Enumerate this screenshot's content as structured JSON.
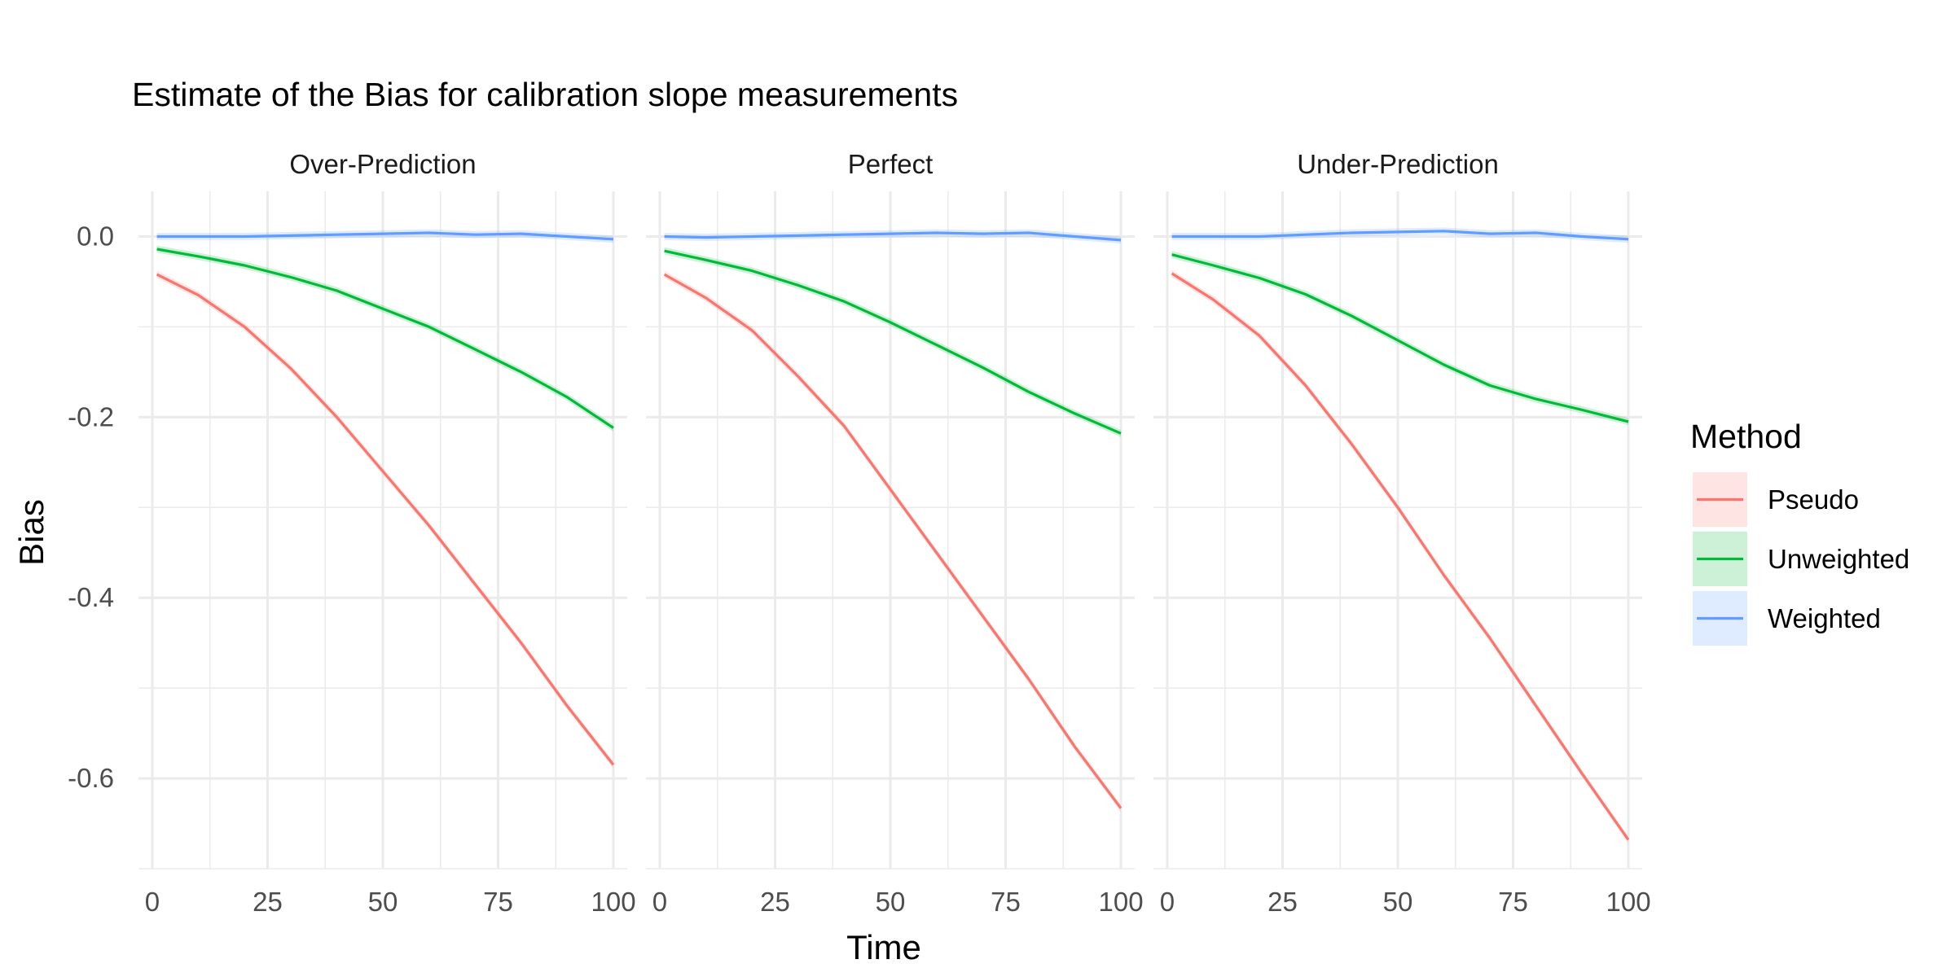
{
  "chart_data": {
    "type": "line",
    "title": "Estimate of the Bias for calibration slope measurements",
    "xlabel": "Time",
    "ylabel": "Bias",
    "xlim": [
      -3,
      103
    ],
    "ylim": [
      -0.7,
      0.05
    ],
    "x_ticks": [
      0,
      25,
      50,
      75,
      100
    ],
    "x_tick_labels": [
      "0",
      "25",
      "50",
      "75",
      "100"
    ],
    "y_ticks": [
      0.0,
      -0.2,
      -0.4,
      -0.6
    ],
    "y_tick_labels": [
      "0.0",
      "-0.2",
      "-0.4",
      "-0.6"
    ],
    "grid": true,
    "legend": {
      "title": "Method",
      "placement": "right",
      "entries": [
        "Pseudo",
        "Unweighted",
        "Weighted"
      ]
    },
    "colors": {
      "Pseudo": "#F8766D",
      "Unweighted": "#00BA38",
      "Weighted": "#619CFF"
    },
    "x": [
      1,
      10,
      20,
      30,
      40,
      50,
      60,
      70,
      80,
      90,
      100
    ],
    "panels": [
      {
        "label": "Over-Prediction",
        "series": [
          {
            "name": "Pseudo",
            "values": [
              -0.042,
              -0.065,
              -0.1,
              -0.146,
              -0.2,
              -0.26,
              -0.32,
              -0.385,
              -0.45,
              -0.52,
              -0.585
            ]
          },
          {
            "name": "Unweighted",
            "values": [
              -0.014,
              -0.022,
              -0.032,
              -0.045,
              -0.06,
              -0.08,
              -0.1,
              -0.125,
              -0.15,
              -0.178,
              -0.212
            ]
          },
          {
            "name": "Weighted",
            "values": [
              0.0,
              0.0,
              0.0,
              0.001,
              0.002,
              0.003,
              0.004,
              0.002,
              0.003,
              0.0,
              -0.003
            ]
          }
        ]
      },
      {
        "label": "Perfect",
        "series": [
          {
            "name": "Pseudo",
            "values": [
              -0.042,
              -0.068,
              -0.104,
              -0.155,
              -0.21,
              -0.28,
              -0.35,
              -0.42,
              -0.49,
              -0.565,
              -0.633
            ]
          },
          {
            "name": "Unweighted",
            "values": [
              -0.016,
              -0.026,
              -0.038,
              -0.054,
              -0.072,
              -0.095,
              -0.12,
              -0.145,
              -0.172,
              -0.196,
              -0.218
            ]
          },
          {
            "name": "Weighted",
            "values": [
              0.0,
              -0.001,
              0.0,
              0.001,
              0.002,
              0.003,
              0.004,
              0.003,
              0.004,
              0.0,
              -0.004
            ]
          }
        ]
      },
      {
        "label": "Under-Prediction",
        "series": [
          {
            "name": "Pseudo",
            "values": [
              -0.041,
              -0.07,
              -0.11,
              -0.165,
              -0.23,
              -0.3,
              -0.375,
              -0.445,
              -0.52,
              -0.595,
              -0.668
            ]
          },
          {
            "name": "Unweighted",
            "values": [
              -0.02,
              -0.032,
              -0.046,
              -0.064,
              -0.088,
              -0.115,
              -0.142,
              -0.165,
              -0.18,
              -0.192,
              -0.205
            ]
          },
          {
            "name": "Weighted",
            "values": [
              0.0,
              0.0,
              0.0,
              0.002,
              0.004,
              0.005,
              0.006,
              0.003,
              0.004,
              0.0,
              -0.003
            ]
          }
        ]
      }
    ]
  }
}
